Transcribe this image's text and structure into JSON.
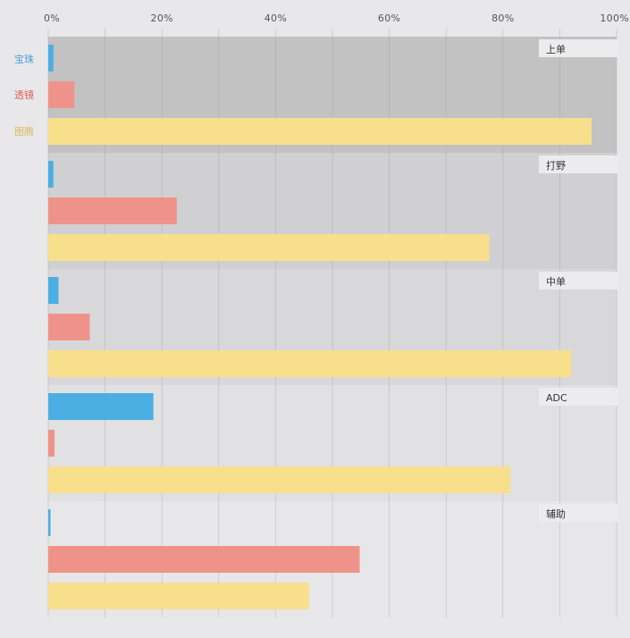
{
  "chart_data": {
    "type": "bar",
    "orientation": "horizontal",
    "x_ticks": [
      "0%",
      "20%",
      "40%",
      "60%",
      "80%",
      "100%"
    ],
    "xlim": [
      0,
      100
    ],
    "grid": true,
    "legend_position": "left",
    "categories": [
      "上单",
      "打野",
      "中单",
      "ADC",
      "辅助"
    ],
    "series": [
      {
        "name": "宝珠",
        "color": "#4aaee3",
        "values": [
          0.9,
          0.9,
          1.8,
          18.5,
          0.4
        ]
      },
      {
        "name": "透镜",
        "color": "#ef938a",
        "values": [
          4.6,
          22.6,
          7.3,
          1.1,
          54.8
        ]
      },
      {
        "name": "图腾",
        "color": "#f8df8c",
        "values": [
          95.6,
          77.6,
          92.0,
          81.3,
          45.9
        ]
      }
    ],
    "group_backgrounds": [
      "#c2c2c2",
      "#d0d0d2",
      "#d8d8da",
      "#e1e1e3",
      "#e7e7e9"
    ],
    "legend_text_colors": [
      "#4a9fd8",
      "#e0605a",
      "#e0b860"
    ]
  }
}
